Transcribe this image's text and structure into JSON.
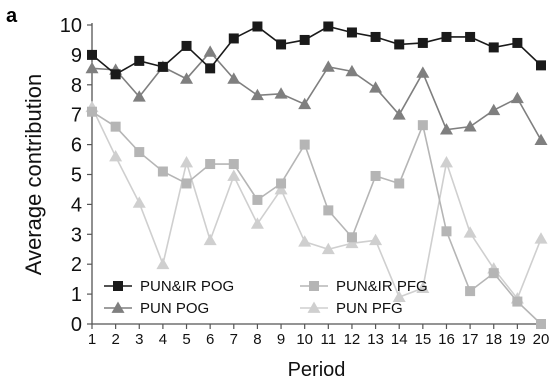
{
  "panel_label": "a",
  "chart_data": {
    "type": "line",
    "title": "",
    "xlabel": "Period",
    "ylabel": "Average contribution",
    "x": [
      1,
      2,
      3,
      4,
      5,
      6,
      7,
      8,
      9,
      10,
      11,
      12,
      13,
      14,
      15,
      16,
      17,
      18,
      19,
      20
    ],
    "xlim": [
      1,
      20
    ],
    "ylim": [
      0,
      10
    ],
    "yticks": [
      0,
      1,
      2,
      3,
      4,
      5,
      6,
      7,
      8,
      9,
      10
    ],
    "grid": false,
    "legend_position": "bottom-left",
    "series": [
      {
        "name": "PUN&IR POG",
        "color": "#1a1a1a",
        "marker": "square",
        "values": [
          9.0,
          8.35,
          8.8,
          8.6,
          9.3,
          8.55,
          9.55,
          9.95,
          9.35,
          9.5,
          9.95,
          9.75,
          9.6,
          9.35,
          9.4,
          9.6,
          9.6,
          9.25,
          9.4,
          8.65
        ]
      },
      {
        "name": "PUN&IR PFG",
        "color": "#b5b5b5",
        "marker": "square",
        "values": [
          7.1,
          6.6,
          5.75,
          5.1,
          4.7,
          5.35,
          5.35,
          4.15,
          4.7,
          6.0,
          3.8,
          2.9,
          4.95,
          4.7,
          6.65,
          3.1,
          1.1,
          1.7,
          0.75,
          0.0
        ]
      },
      {
        "name": "PUN POG",
        "color": "#7f7f7f",
        "marker": "triangle",
        "values": [
          8.55,
          8.5,
          7.6,
          8.6,
          8.2,
          9.1,
          8.2,
          7.65,
          7.7,
          7.35,
          8.6,
          8.45,
          7.9,
          7.0,
          8.4,
          6.5,
          6.6,
          7.15,
          7.55,
          6.15
        ]
      },
      {
        "name": "PUN PFG",
        "color": "#cfcfcf",
        "marker": "triangle",
        "values": [
          7.25,
          5.6,
          4.05,
          2.0,
          5.4,
          2.8,
          4.95,
          3.35,
          4.5,
          2.75,
          2.5,
          2.7,
          2.8,
          0.9,
          1.2,
          5.4,
          3.05,
          1.85,
          0.85,
          2.85
        ]
      }
    ],
    "legend_order": [
      "PUN&IR POG",
      "PUN&IR PFG",
      "PUN POG",
      "PUN PFG"
    ]
  }
}
